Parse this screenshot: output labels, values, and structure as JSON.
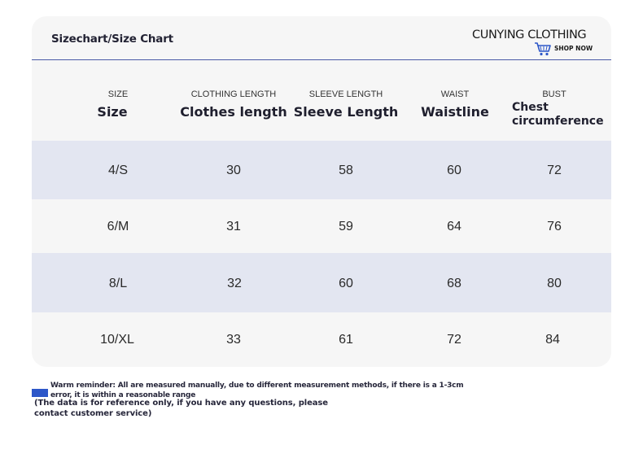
{
  "header": {
    "title": "Sizechart/Size Chart",
    "brand": "CUNYING CLOTHING",
    "shop_now": "SHOP NOW",
    "cart_icon": "shopping-cart-icon"
  },
  "columns": [
    {
      "en": "SIZE",
      "cn": "Size"
    },
    {
      "en": "CLOTHING LENGTH",
      "cn": "Clothes length"
    },
    {
      "en": "SLEEVE LENGTH",
      "cn": "Sleeve Length"
    },
    {
      "en": "WAIST",
      "cn": "Waistline"
    },
    {
      "en": "BUST",
      "cn": "Chest circumference"
    }
  ],
  "rows": [
    [
      "4/S",
      "30",
      "58",
      "60",
      "72"
    ],
    [
      "6/M",
      "31",
      "59",
      "64",
      "76"
    ],
    [
      "8/L",
      "32",
      "60",
      "68",
      "80"
    ],
    [
      "10/XL",
      "33",
      "61",
      "72",
      "84"
    ]
  ],
  "notes": {
    "reminder": "Warm reminder: All are measured manually, due to different measurement methods, if there is a 1-3cm error, it is within a reasonable range",
    "reference": "(The data is for reference only, if you have any questions, please contact customer service)"
  },
  "colors": {
    "accent": "#2c56c8",
    "row_shade": "#e3e6f1",
    "divider": "#4a5aa6"
  }
}
